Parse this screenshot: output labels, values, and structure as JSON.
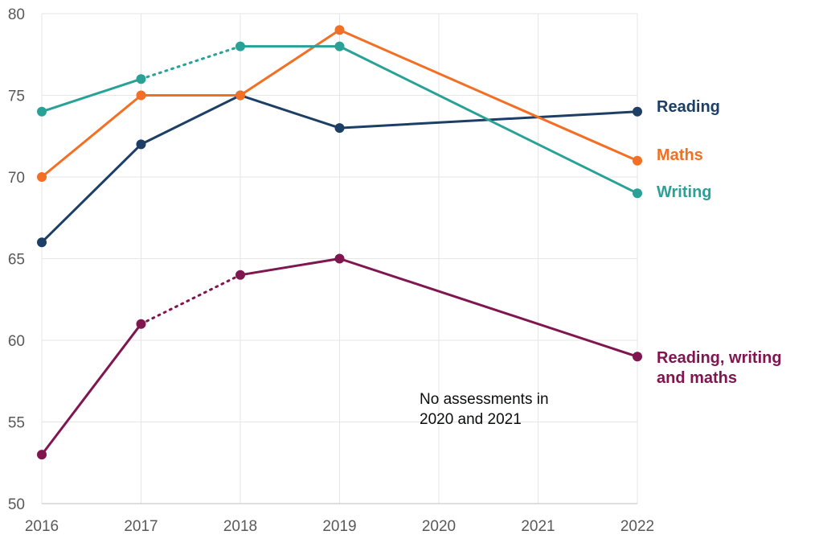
{
  "chart_data": {
    "type": "line",
    "title": "",
    "xlabel": "",
    "ylabel": "",
    "x": [
      2016,
      2017,
      2018,
      2019,
      2020,
      2021,
      2022
    ],
    "xlim": [
      2016,
      2022
    ],
    "ylim": [
      50,
      80
    ],
    "yticks": [
      50,
      55,
      60,
      65,
      70,
      75,
      80
    ],
    "grid": true,
    "legend": "direct labels at line ends (right)",
    "series": [
      {
        "name": "Reading",
        "color": "#1d3f66",
        "points": [
          [
            2016,
            66
          ],
          [
            2017,
            72
          ],
          [
            2018,
            75
          ],
          [
            2019,
            73
          ],
          [
            2022,
            74
          ]
        ],
        "dotted_segments": []
      },
      {
        "name": "Maths",
        "color": "#f26f24",
        "points": [
          [
            2016,
            70
          ],
          [
            2017,
            75
          ],
          [
            2018,
            75
          ],
          [
            2019,
            79
          ],
          [
            2022,
            71
          ]
        ],
        "dotted_segments": []
      },
      {
        "name": "Writing",
        "color": "#28a197",
        "points": [
          [
            2016,
            74
          ],
          [
            2017,
            76
          ],
          [
            2018,
            78
          ],
          [
            2019,
            78
          ],
          [
            2022,
            69
          ]
        ],
        "dotted_segments": [
          [
            2017,
            2018
          ]
        ]
      },
      {
        "name_lines": [
          "Reading, writing",
          "and maths"
        ],
        "color": "#801650",
        "points": [
          [
            2016,
            53
          ],
          [
            2017,
            61
          ],
          [
            2018,
            64
          ],
          [
            2019,
            65
          ],
          [
            2022,
            59
          ]
        ],
        "dotted_segments": [
          [
            2017,
            2018
          ]
        ]
      }
    ],
    "annotation": {
      "lines": [
        "No assessments in",
        "2020 and 2021"
      ]
    }
  }
}
